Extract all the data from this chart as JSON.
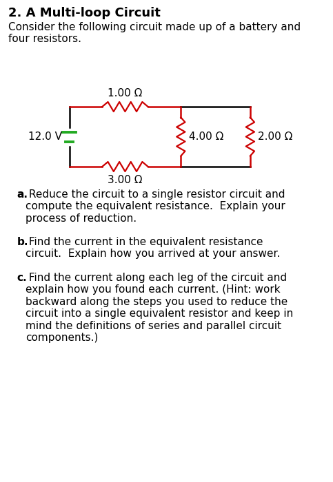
{
  "title": "2. A Multi-loop Circuit",
  "intro_text": "Consider the following circuit made up of a battery and\nfour resistors.",
  "bg_color": "#ffffff",
  "text_color": "#000000",
  "circuit_color": "#cc0000",
  "wire_color": "#000000",
  "battery_color": "#22aa22",
  "resistor_labels": {
    "top": "1.00 Ω",
    "bottom": "3.00 Ω",
    "middle": "4.00 Ω",
    "right": "2.00 Ω"
  },
  "battery_label": "12.0 V",
  "questions": [
    {
      "bold": "a.",
      "text": " Reduce the circuit to a single resistor circuit and\ncompute the equivalent resistance.  Explain your\nprocess of reduction."
    },
    {
      "bold": "b.",
      "text": " Find the current in the equivalent resistance\ncircuit.  Explain how you arrived at your answer."
    },
    {
      "bold": "c.",
      "text": " Find the current along each leg of the circuit and\nexplain how you found each current. (Hint: work\nbackward along the steps you used to reduce the\ncircuit into a single equivalent resistor and keep in\nmind the definitions of series and parallel circuit\ncomponents.)"
    }
  ]
}
